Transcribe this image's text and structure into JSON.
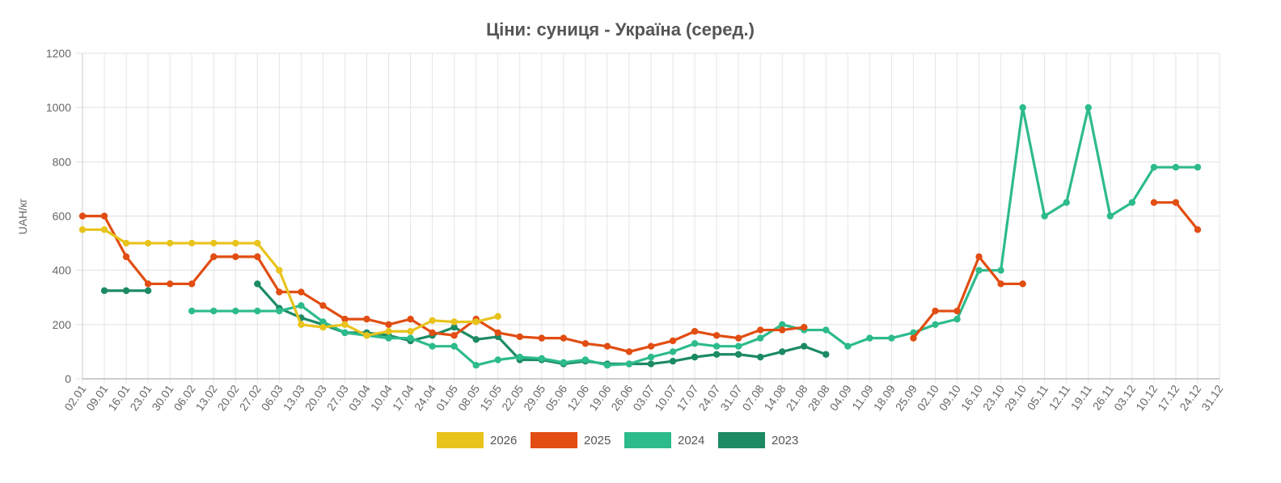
{
  "chart_data": {
    "type": "line",
    "title": "Ціни: суниця - Україна (серед.)",
    "ylabel": "UAH/кг",
    "xlabel": "",
    "ylim": [
      0,
      1200
    ],
    "yticks": [
      0,
      200,
      400,
      600,
      800,
      1000,
      1200
    ],
    "grid": true,
    "legend_position": "bottom",
    "categories": [
      "02.01",
      "09.01",
      "16.01",
      "23.01",
      "30.01",
      "06.02",
      "13.02",
      "20.02",
      "27.02",
      "06.03",
      "13.03",
      "20.03",
      "27.03",
      "03.04",
      "10.04",
      "17.04",
      "24.04",
      "01.05",
      "08.05",
      "15.05",
      "22.05",
      "29.05",
      "05.06",
      "12.06",
      "19.06",
      "26.06",
      "03.07",
      "10.07",
      "17.07",
      "24.07",
      "31.07",
      "07.08",
      "14.08",
      "21.08",
      "28.08",
      "04.09",
      "11.09",
      "18.09",
      "25.09",
      "02.10",
      "09.10",
      "16.10",
      "23.10",
      "29.10",
      "05.11",
      "12.11",
      "19.11",
      "26.11",
      "03.12",
      "10.12",
      "17.12",
      "24.12",
      "31.12"
    ],
    "series": [
      {
        "name": "2026",
        "color": "#e8c31c",
        "values": [
          550,
          550,
          500,
          500,
          500,
          500,
          500,
          500,
          500,
          400,
          200,
          190,
          200,
          160,
          175,
          175,
          215,
          210,
          210,
          230,
          null,
          null,
          null,
          null,
          null,
          null,
          null,
          null,
          null,
          null,
          null,
          null,
          null,
          null,
          null,
          null,
          null,
          null,
          null,
          null,
          null,
          null,
          null,
          null,
          null,
          null,
          null,
          null,
          null,
          null,
          null,
          null,
          null
        ]
      },
      {
        "name": "2025",
        "color": "#e14d12",
        "values": [
          600,
          600,
          450,
          350,
          350,
          350,
          450,
          450,
          450,
          320,
          320,
          270,
          220,
          220,
          200,
          220,
          170,
          160,
          220,
          170,
          155,
          150,
          150,
          130,
          120,
          100,
          120,
          140,
          175,
          160,
          150,
          180,
          180,
          190,
          null,
          null,
          null,
          null,
          150,
          250,
          250,
          450,
          350,
          350,
          null,
          null,
          null,
          null,
          null,
          650,
          650,
          550,
          null
        ]
      },
      {
        "name": "2024",
        "color": "#2dbb8c",
        "values": [
          null,
          null,
          null,
          null,
          null,
          250,
          250,
          250,
          250,
          250,
          270,
          210,
          170,
          160,
          150,
          150,
          120,
          120,
          50,
          70,
          80,
          75,
          60,
          70,
          50,
          55,
          80,
          100,
          130,
          120,
          120,
          150,
          200,
          180,
          180,
          120,
          150,
          150,
          170,
          200,
          220,
          400,
          400,
          1000,
          600,
          650,
          1000,
          600,
          650,
          780,
          780,
          780,
          null
        ]
      },
      {
        "name": "2023",
        "color": "#1c8a62",
        "values": [
          null,
          325,
          325,
          325,
          null,
          null,
          null,
          null,
          350,
          260,
          225,
          200,
          170,
          170,
          160,
          140,
          160,
          190,
          145,
          155,
          70,
          70,
          55,
          65,
          55,
          55,
          55,
          65,
          80,
          90,
          90,
          80,
          100,
          120,
          90,
          null,
          null,
          null,
          null,
          null,
          null,
          null,
          null,
          null,
          null,
          null,
          null,
          null,
          null,
          null,
          null,
          null,
          null
        ]
      }
    ]
  }
}
